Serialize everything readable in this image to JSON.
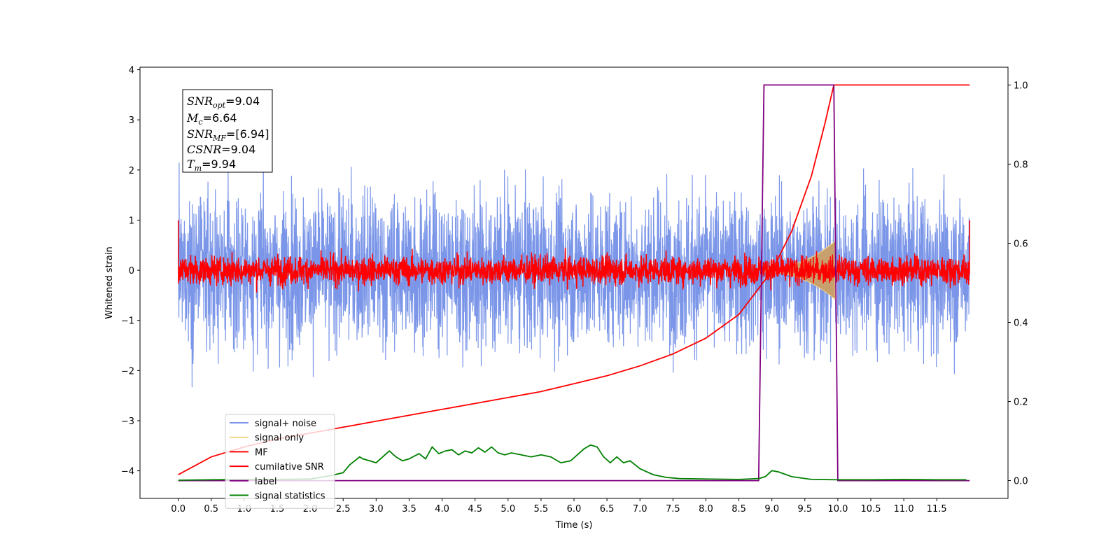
{
  "chart_data": {
    "type": "line",
    "title": "",
    "xlabel": "Time (s)",
    "ylabel": "Whitened strain",
    "ylabel_right": "",
    "xlim": [
      -0.58,
      12.58
    ],
    "ylim": [
      -4.55,
      4.05
    ],
    "ylim_right": [
      -0.045,
      1.045
    ],
    "x_ticks": [
      "0.0",
      "0.5",
      "1.0",
      "1.5",
      "2.0",
      "2.5",
      "3.0",
      "3.5",
      "4.0",
      "4.5",
      "5.0",
      "5.5",
      "6.0",
      "6.5",
      "7.0",
      "7.5",
      "8.0",
      "8.5",
      "9.0",
      "9.5",
      "10.0",
      "10.5",
      "11.0",
      "11.5"
    ],
    "y_ticks": [
      "4",
      "3",
      "2",
      "1",
      "0",
      "−1",
      "−2",
      "−3",
      "−4"
    ],
    "y_ticks_right": [
      "1.0",
      "0.8",
      "0.6",
      "0.4",
      "0.2",
      "0.0"
    ],
    "grid": false,
    "legend_position": "lower-left",
    "annotation": {
      "snr_opt": {
        "sym": "SNR",
        "sub": "opt",
        "val": "=9.04"
      },
      "mc": {
        "sym": "M",
        "sub": "c",
        "val": "=6.64"
      },
      "snr_mf": {
        "sym": "SNR",
        "sub": "MF",
        "val": "=[6.94]"
      },
      "csnr": {
        "sym": "CSNR",
        "sub": "",
        "val": "=9.04"
      },
      "tm": {
        "sym": "T",
        "sub": "m",
        "val": "=9.94"
      }
    },
    "series": [
      {
        "name": "signal+ noise",
        "color": "#7b96e8",
        "axis": "left",
        "kind": "noise",
        "amplitude_std": 0.75,
        "range": [
          0.0,
          12.0
        ]
      },
      {
        "name": "signal only",
        "color": "#f5d58a",
        "axis": "left",
        "kind": "chirp",
        "max_amplitude": 0.55,
        "range": [
          8.85,
          9.96
        ]
      },
      {
        "name": "MF",
        "color": "#ff0000",
        "axis": "left",
        "kind": "noise",
        "amplitude_std": 0.14,
        "range": [
          0.0,
          12.0
        ]
      },
      {
        "name": "cumilative SNR",
        "color": "#ff0000",
        "axis": "right",
        "x": [
          0.0,
          0.5,
          1.0,
          1.5,
          2.0,
          2.5,
          3.0,
          3.5,
          4.0,
          4.5,
          5.0,
          5.5,
          6.0,
          6.5,
          7.0,
          7.5,
          8.0,
          8.5,
          9.0,
          9.3,
          9.6,
          9.8,
          9.94,
          9.95,
          12.0
        ],
        "values": [
          0.015,
          0.06,
          0.085,
          0.105,
          0.12,
          0.135,
          0.15,
          0.165,
          0.18,
          0.195,
          0.21,
          0.225,
          0.245,
          0.265,
          0.29,
          0.32,
          0.36,
          0.42,
          0.53,
          0.63,
          0.77,
          0.9,
          1.0,
          1.0,
          1.0
        ]
      },
      {
        "name": "label",
        "color": "#800080",
        "axis": "right",
        "x": [
          0.0,
          8.8,
          8.88,
          9.94,
          10.0,
          12.0
        ],
        "values": [
          0.0,
          0.0,
          1.0,
          1.0,
          0.0,
          0.0
        ]
      },
      {
        "name": "signal statistics",
        "color": "#008000",
        "axis": "right",
        "x": [
          0.0,
          0.5,
          1.0,
          1.5,
          2.0,
          2.3,
          2.5,
          2.6,
          2.75,
          2.8,
          2.9,
          3.0,
          3.1,
          3.2,
          3.3,
          3.4,
          3.5,
          3.65,
          3.75,
          3.85,
          3.95,
          4.05,
          4.15,
          4.25,
          4.35,
          4.45,
          4.55,
          4.65,
          4.75,
          4.85,
          4.95,
          5.05,
          5.2,
          5.35,
          5.5,
          5.65,
          5.8,
          5.95,
          6.05,
          6.15,
          6.25,
          6.35,
          6.45,
          6.55,
          6.65,
          6.75,
          6.85,
          7.0,
          7.2,
          7.4,
          7.6,
          8.0,
          8.5,
          8.8,
          8.9,
          9.0,
          9.1,
          9.3,
          9.6,
          10.0,
          10.5,
          11.0,
          11.5,
          11.95
        ],
        "values": [
          0.001,
          0.002,
          0.003,
          0.003,
          0.004,
          0.012,
          0.02,
          0.04,
          0.06,
          0.055,
          0.05,
          0.045,
          0.06,
          0.075,
          0.06,
          0.05,
          0.055,
          0.068,
          0.055,
          0.085,
          0.068,
          0.075,
          0.078,
          0.065,
          0.075,
          0.07,
          0.083,
          0.072,
          0.085,
          0.07,
          0.065,
          0.07,
          0.065,
          0.06,
          0.065,
          0.06,
          0.045,
          0.05,
          0.065,
          0.08,
          0.09,
          0.085,
          0.06,
          0.045,
          0.06,
          0.045,
          0.05,
          0.03,
          0.015,
          0.008,
          0.005,
          0.004,
          0.003,
          0.005,
          0.01,
          0.025,
          0.022,
          0.01,
          0.003,
          0.002,
          0.002,
          0.003,
          0.002,
          0.002
        ]
      }
    ]
  }
}
